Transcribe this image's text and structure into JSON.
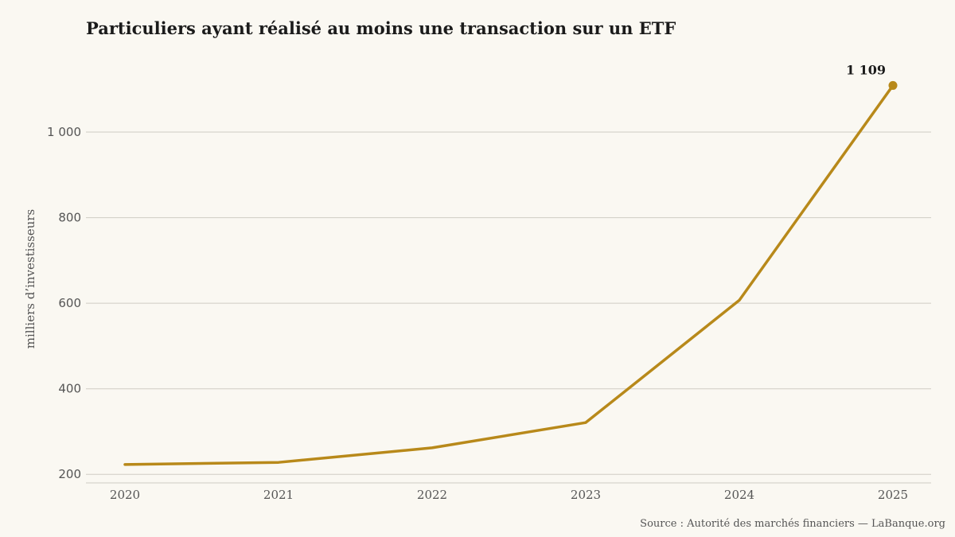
{
  "chart_data": {
    "type": "line",
    "title": "Particuliers ayant réalisé au moins une transaction sur un ETF",
    "ylabel": "milliers d’investisseurs",
    "xlabel": "",
    "x": [
      "2020",
      "2021",
      "2022",
      "2023",
      "2024",
      "2025"
    ],
    "series": [
      {
        "values": [
          223,
          228,
          262,
          321,
          607,
          1109
        ]
      }
    ],
    "ylim": [
      180,
      1160
    ],
    "yticks": [
      200,
      400,
      600,
      800,
      1000
    ],
    "ytick_labels": [
      "200",
      "400",
      "600",
      "800",
      "1 000"
    ],
    "data_labels": [
      {
        "x": "2025",
        "text": "1 109"
      }
    ],
    "grid": "horizontal",
    "colors": {
      "line": "#b8891a",
      "grid": "#cfccc4",
      "background": "#faf8f2"
    },
    "source": "Source : Autorité des marchés financiers — LaBanque.org"
  }
}
